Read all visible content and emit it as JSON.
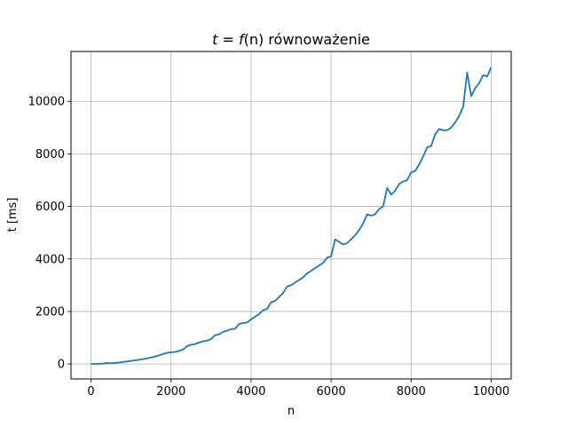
{
  "chart_data": {
    "type": "line",
    "title_var": "t",
    "title_eq": " = ",
    "title_func": "f",
    "title_arg": "(n)",
    "title_rest": " równoważenie",
    "xlabel": "n",
    "ylabel": "t [ms]",
    "xlim": [
      -500,
      10500
    ],
    "ylim": [
      -570,
      11900
    ],
    "grid": true,
    "xticks": [
      0,
      2000,
      4000,
      6000,
      8000,
      10000
    ],
    "yticks": [
      0,
      2000,
      4000,
      6000,
      8000,
      10000
    ],
    "line_color": "#1f77b4",
    "series": [
      {
        "x": [
          0,
          100,
          200,
          300,
          400,
          500,
          600,
          700,
          800,
          900,
          1000,
          1100,
          1200,
          1300,
          1400,
          1500,
          1600,
          1700,
          1800,
          1900,
          2000,
          2100,
          2200,
          2300,
          2400,
          2500,
          2600,
          2700,
          2800,
          2900,
          3000,
          3100,
          3200,
          3300,
          3400,
          3500,
          3600,
          3700,
          3800,
          3900,
          4000,
          4100,
          4200,
          4300,
          4400,
          4500,
          4600,
          4700,
          4800,
          4900,
          5000,
          5100,
          5200,
          5300,
          5400,
          5500,
          5600,
          5700,
          5800,
          5900,
          6000,
          6100,
          6200,
          6300,
          6400,
          6500,
          6600,
          6700,
          6800,
          6900,
          7000,
          7100,
          7200,
          7300,
          7400,
          7500,
          7600,
          7700,
          7800,
          7900,
          8000,
          8100,
          8200,
          8300,
          8400,
          8500,
          8600,
          8700,
          8800,
          8900,
          9000,
          9100,
          9200,
          9300,
          9400,
          9500,
          9600,
          9700,
          9800,
          9900,
          10000
        ],
        "y": [
          0,
          5,
          10,
          15,
          40,
          30,
          40,
          55,
          75,
          95,
          120,
          140,
          160,
          185,
          215,
          245,
          285,
          330,
          380,
          425,
          445,
          460,
          500,
          550,
          680,
          730,
          760,
          820,
          860,
          890,
          950,
          1100,
          1130,
          1220,
          1270,
          1330,
          1340,
          1520,
          1560,
          1580,
          1700,
          1800,
          1900,
          2050,
          2100,
          2350,
          2400,
          2550,
          2700,
          2950,
          3000,
          3100,
          3200,
          3300,
          3450,
          3550,
          3650,
          3750,
          3850,
          4050,
          4100,
          4750,
          4650,
          4550,
          4600,
          4750,
          4900,
          5100,
          5350,
          5700,
          5650,
          5700,
          5900,
          6000,
          6700,
          6450,
          6600,
          6850,
          6950,
          7000,
          7300,
          7350,
          7600,
          7900,
          8250,
          8300,
          8750,
          8950,
          8900,
          8900,
          9000,
          9200,
          9450,
          9800,
          11100,
          10200,
          10500,
          10700,
          11000,
          10950,
          11300
        ]
      }
    ]
  }
}
